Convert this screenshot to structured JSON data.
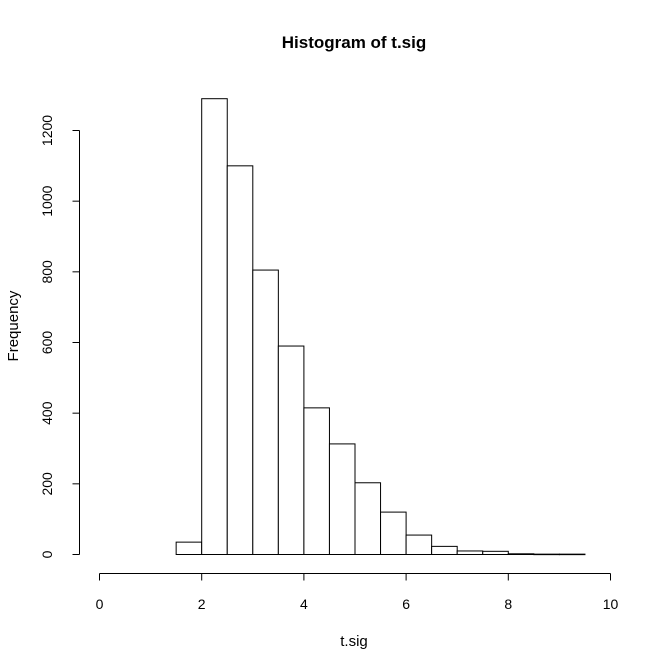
{
  "chart_data": {
    "type": "bar",
    "title": "Histogram of t.sig",
    "xlabel": "t.sig",
    "ylabel": "Frequency",
    "xlim": [
      0,
      10
    ],
    "ylim": [
      0,
      1290
    ],
    "x_ticks": [
      0,
      2,
      4,
      6,
      8,
      10
    ],
    "y_ticks": [
      0,
      200,
      400,
      600,
      800,
      1000,
      1200
    ],
    "bins": [
      {
        "x0": 1.5,
        "x1": 2.0,
        "count": 35
      },
      {
        "x0": 2.0,
        "x1": 2.5,
        "count": 1290
      },
      {
        "x0": 2.5,
        "x1": 3.0,
        "count": 1100
      },
      {
        "x0": 3.0,
        "x1": 3.5,
        "count": 805
      },
      {
        "x0": 3.5,
        "x1": 4.0,
        "count": 590
      },
      {
        "x0": 4.0,
        "x1": 4.5,
        "count": 415
      },
      {
        "x0": 4.5,
        "x1": 5.0,
        "count": 313
      },
      {
        "x0": 5.0,
        "x1": 5.5,
        "count": 203
      },
      {
        "x0": 5.5,
        "x1": 6.0,
        "count": 120
      },
      {
        "x0": 6.0,
        "x1": 6.5,
        "count": 55
      },
      {
        "x0": 6.5,
        "x1": 7.0,
        "count": 23
      },
      {
        "x0": 7.0,
        "x1": 7.5,
        "count": 10
      },
      {
        "x0": 7.5,
        "x1": 8.0,
        "count": 9
      },
      {
        "x0": 8.0,
        "x1": 8.5,
        "count": 2
      },
      {
        "x0": 8.5,
        "x1": 9.0,
        "count": 1
      },
      {
        "x0": 9.0,
        "x1": 9.5,
        "count": 1
      }
    ],
    "bar_fill": "#ffffff",
    "bar_stroke": "#000000",
    "grid": false,
    "legend": "none"
  }
}
